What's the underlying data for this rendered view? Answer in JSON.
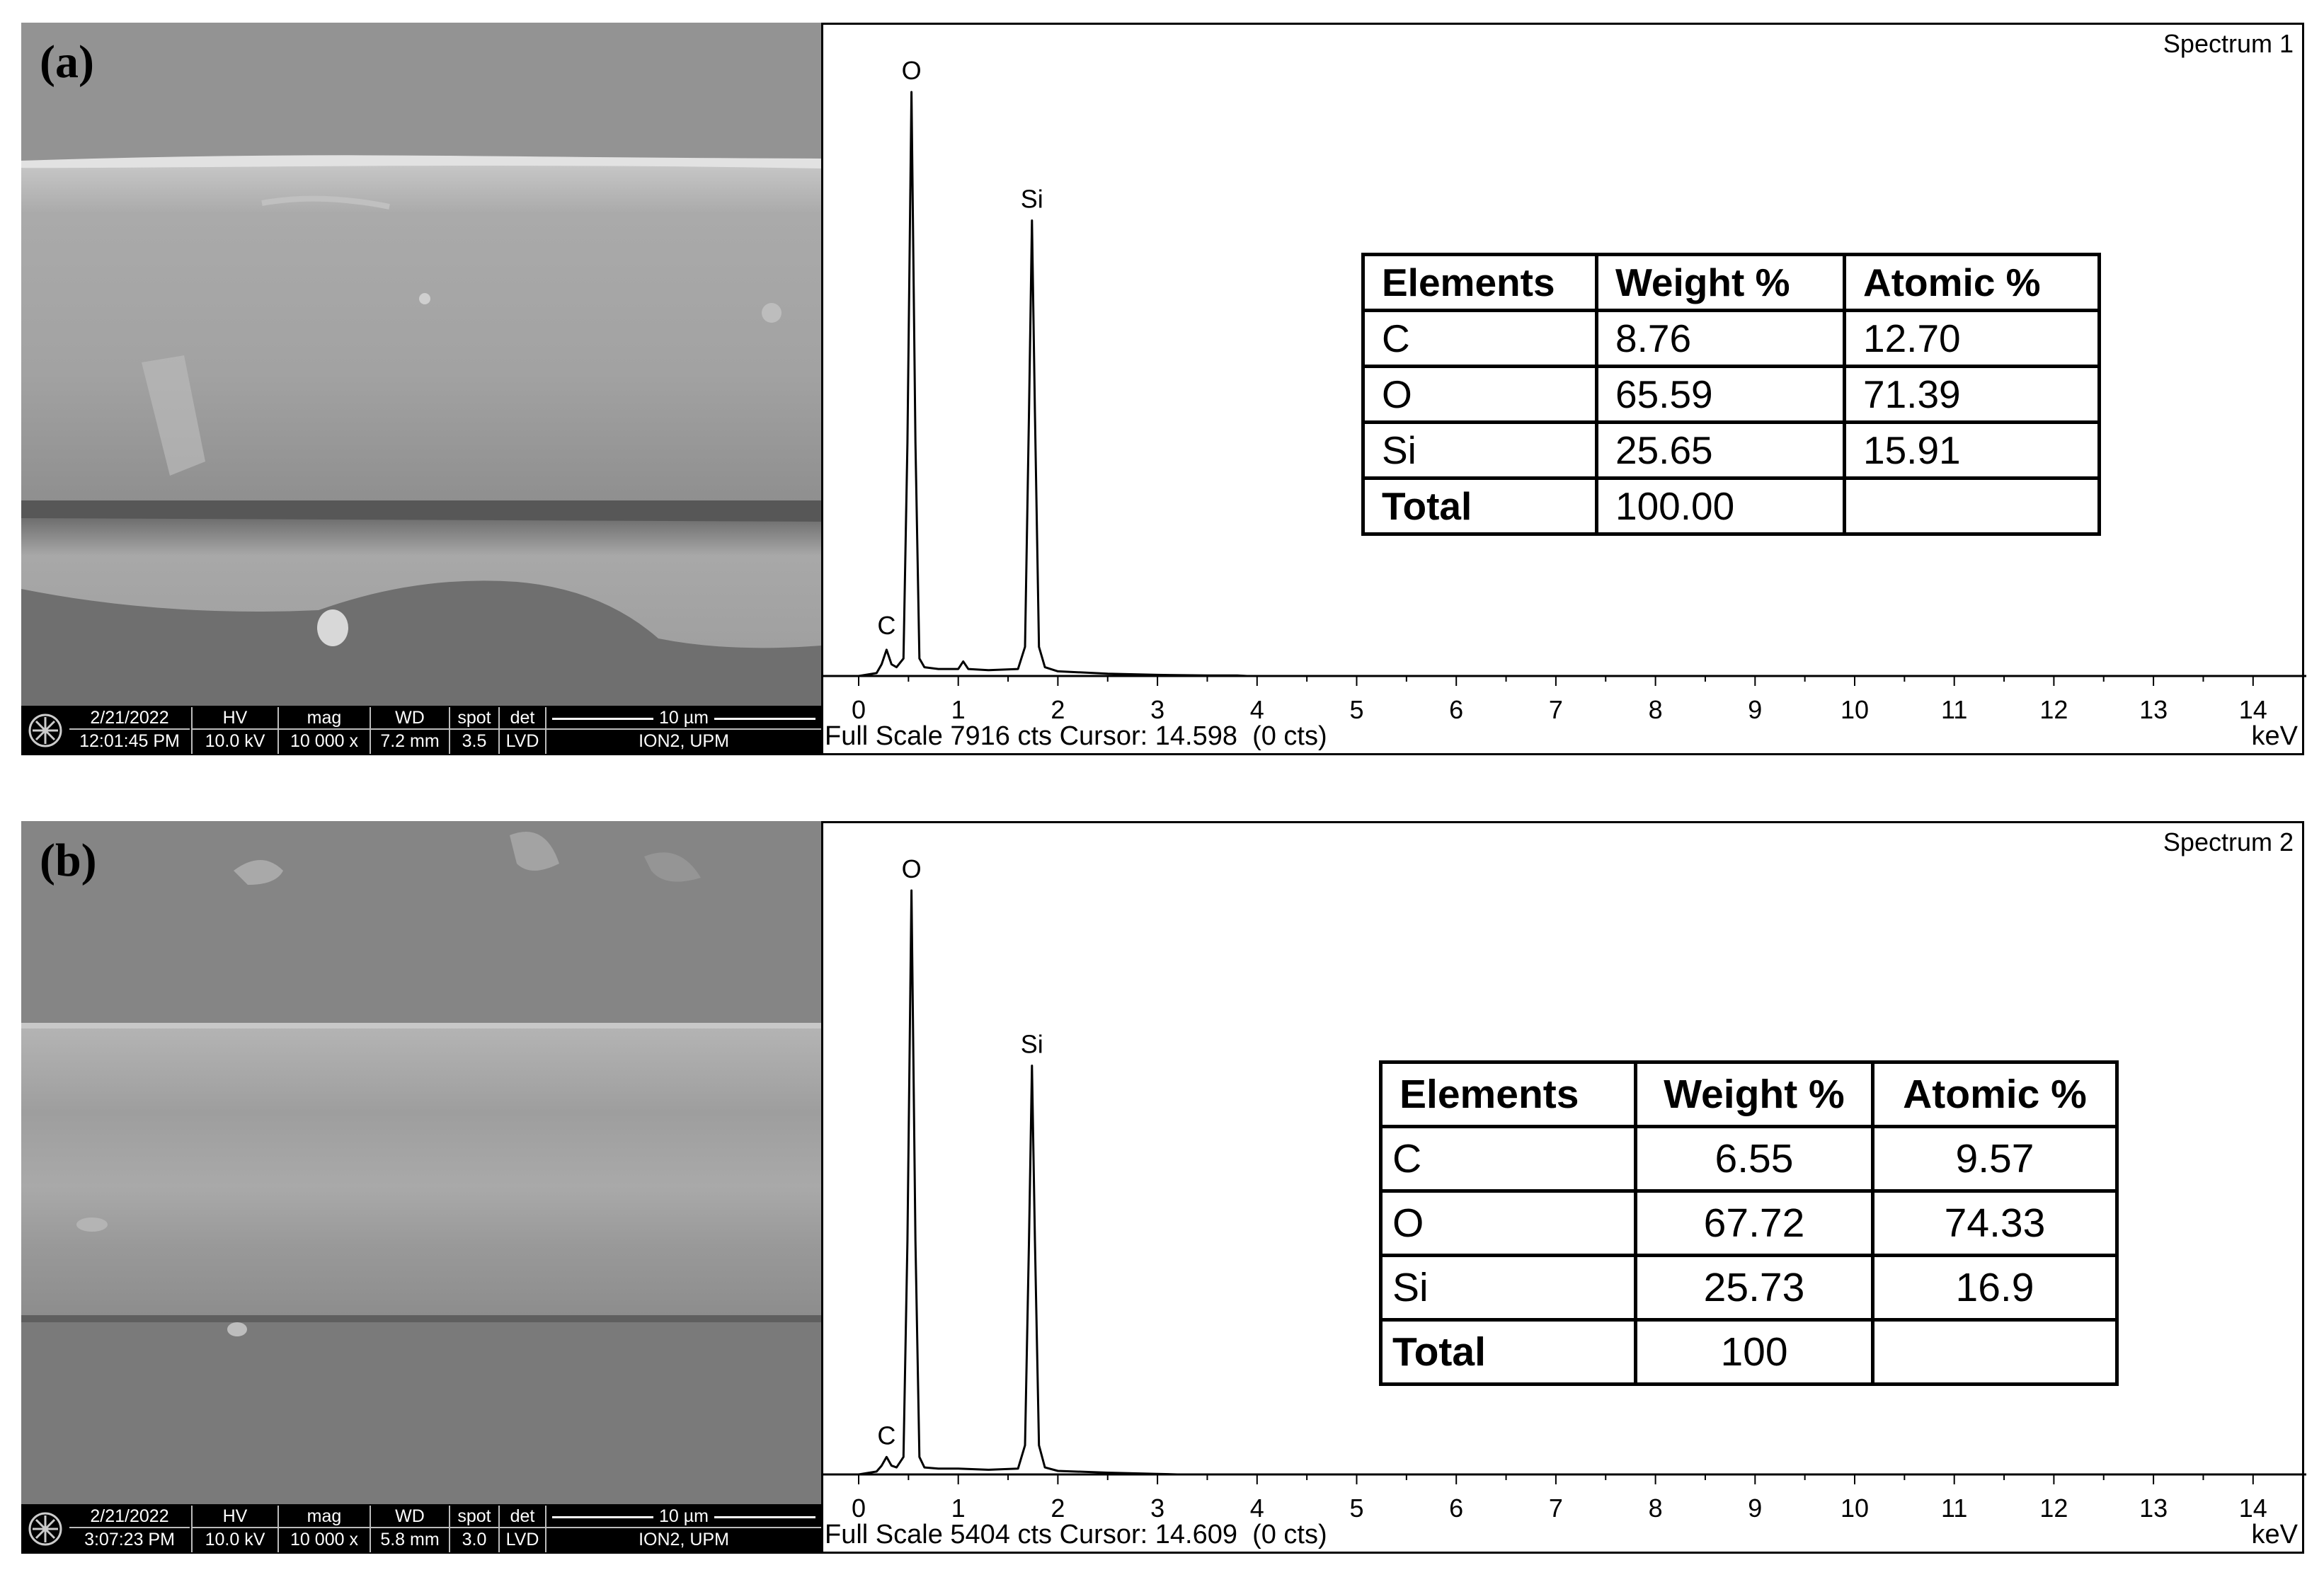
{
  "panels": [
    {
      "label": "(a)",
      "sem": {
        "date": "2/21/2022",
        "time": "12:01:45 PM",
        "hv_label": "HV",
        "hv": "10.0 kV",
        "mag_label": "mag",
        "mag": "10 000 x",
        "wd_label": "WD",
        "wd": "7.2 mm",
        "spot_label": "spot",
        "spot": "3.5",
        "det_label": "det",
        "det": "LVD",
        "scale": "10 µm",
        "lab": "ION2, UPM"
      },
      "spectrum_name": "Spectrum 1",
      "status": "Full Scale 7916 cts Cursor: 14.598  (0 cts)",
      "unit": "keV",
      "table": {
        "headers": [
          "Elements",
          "Weight %",
          "Atomic %"
        ],
        "rows": [
          [
            "C",
            "8.76",
            "12.70"
          ],
          [
            "O",
            "65.59",
            "71.39"
          ],
          [
            "Si",
            "25.65",
            "15.91"
          ],
          [
            "Total",
            "100.00",
            ""
          ]
        ]
      }
    },
    {
      "label": "(b)",
      "sem": {
        "date": "2/21/2022",
        "time": "3:07:23 PM",
        "hv_label": "HV",
        "hv": "10.0 kV",
        "mag_label": "mag",
        "mag": "10 000 x",
        "wd_label": "WD",
        "wd": "5.8 mm",
        "spot_label": "spot",
        "spot": "3.0",
        "det_label": "det",
        "det": "LVD",
        "scale": "10 µm",
        "lab": "ION2, UPM"
      },
      "spectrum_name": "Spectrum 2",
      "status": "Full Scale 5404 cts Cursor: 14.609  (0 cts)",
      "unit": "keV",
      "table": {
        "headers": [
          "Elements",
          "Weight %",
          "Atomic %"
        ],
        "rows": [
          [
            "C",
            "6.55",
            "9.57"
          ],
          [
            "O",
            "67.72",
            "74.33"
          ],
          [
            "Si",
            "25.73",
            "16.9"
          ],
          [
            "Total",
            "100",
            ""
          ]
        ]
      }
    }
  ],
  "chart_data": [
    {
      "type": "line",
      "title": "Spectrum 1",
      "xlabel": "keV",
      "xlim": [
        0,
        14.2
      ],
      "x_ticks": [
        0,
        1,
        2,
        3,
        4,
        5,
        6,
        7,
        8,
        9,
        10,
        11,
        12,
        13,
        14
      ],
      "full_scale_cts": 7916,
      "peaks": [
        {
          "label": "C",
          "x": 0.28,
          "y": 0.05
        },
        {
          "label": "O",
          "x": 0.53,
          "y": 1.0
        },
        {
          "label": "Si",
          "x": 1.74,
          "y": 0.78
        }
      ],
      "series": [
        {
          "x": [
            0.0,
            0.18,
            0.23,
            0.28,
            0.33,
            0.38,
            0.45,
            0.49,
            0.53,
            0.57,
            0.61,
            0.66,
            0.8,
            1.0,
            1.05,
            1.1,
            1.3,
            1.6,
            1.67,
            1.71,
            1.74,
            1.77,
            1.81,
            1.87,
            2.0,
            2.5,
            3.0,
            3.5,
            3.8,
            3.9,
            14.2
          ],
          "y": [
            0.0,
            0.005,
            0.02,
            0.045,
            0.02,
            0.015,
            0.03,
            0.4,
            1.0,
            0.4,
            0.03,
            0.015,
            0.012,
            0.012,
            0.025,
            0.012,
            0.01,
            0.012,
            0.05,
            0.45,
            0.78,
            0.45,
            0.05,
            0.015,
            0.008,
            0.004,
            0.002,
            0.001,
            0.001,
            0.0,
            0.0
          ]
        }
      ]
    },
    {
      "type": "line",
      "title": "Spectrum 2",
      "xlabel": "keV",
      "xlim": [
        0,
        14.2
      ],
      "x_ticks": [
        0,
        1,
        2,
        3,
        4,
        5,
        6,
        7,
        8,
        9,
        10,
        11,
        12,
        13,
        14
      ],
      "full_scale_cts": 5404,
      "peaks": [
        {
          "label": "C",
          "x": 0.28,
          "y": 0.03
        },
        {
          "label": "O",
          "x": 0.53,
          "y": 1.0
        },
        {
          "label": "Si",
          "x": 1.74,
          "y": 0.7
        }
      ],
      "series": [
        {
          "x": [
            0.0,
            0.18,
            0.23,
            0.28,
            0.33,
            0.38,
            0.45,
            0.49,
            0.53,
            0.57,
            0.61,
            0.66,
            0.8,
            1.0,
            1.3,
            1.6,
            1.67,
            1.71,
            1.74,
            1.77,
            1.81,
            1.87,
            2.0,
            2.5,
            3.0,
            3.2,
            14.2
          ],
          "y": [
            0.0,
            0.005,
            0.015,
            0.03,
            0.015,
            0.012,
            0.03,
            0.4,
            1.0,
            0.4,
            0.03,
            0.012,
            0.01,
            0.01,
            0.008,
            0.01,
            0.05,
            0.4,
            0.7,
            0.4,
            0.05,
            0.012,
            0.006,
            0.003,
            0.001,
            0.0,
            0.0
          ]
        }
      ]
    }
  ]
}
